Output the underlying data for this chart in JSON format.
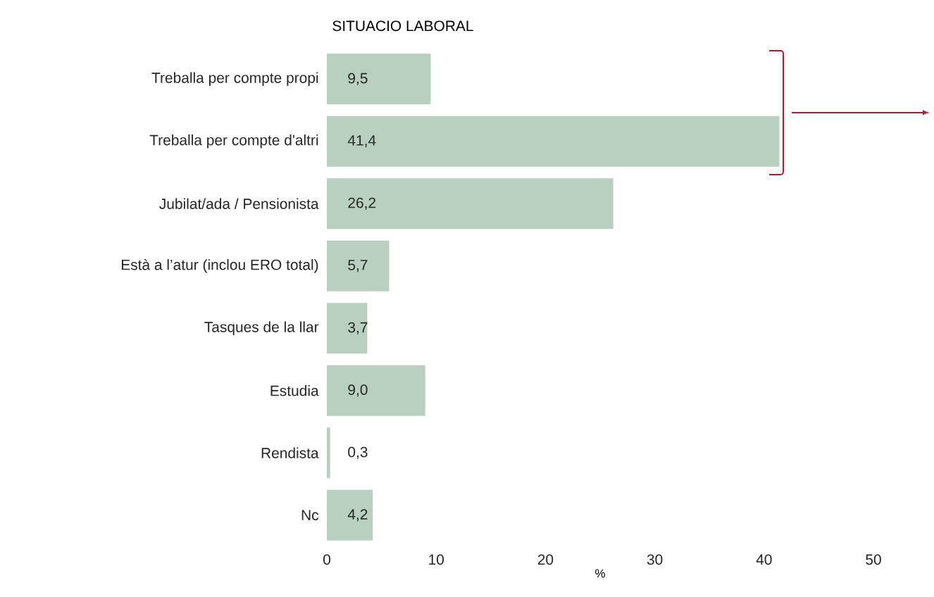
{
  "chart_data": {
    "type": "bar",
    "orientation": "horizontal",
    "title": "SITUACIO LABORAL",
    "categories": [
      "Treballa per compte propi",
      "Treballa per compte d'altri",
      "Jubilat/ada / Pensionista",
      "Està a l’atur (inclou ERO total)",
      "Tasques de la llar",
      "Estudia",
      "Rendista",
      "Nc"
    ],
    "values": [
      9.5,
      41.4,
      26.2,
      5.7,
      3.7,
      9.0,
      0.3,
      4.2
    ],
    "value_labels": [
      "9,5",
      "41,4",
      "26,2",
      "5,7",
      "3,7",
      "9,0",
      "0,3",
      "4,2"
    ],
    "color": "#b9cfbf",
    "xlim": [
      0,
      50
    ],
    "xticks": [
      0,
      10,
      20,
      30,
      40,
      50
    ],
    "xlabel": "%"
  }
}
